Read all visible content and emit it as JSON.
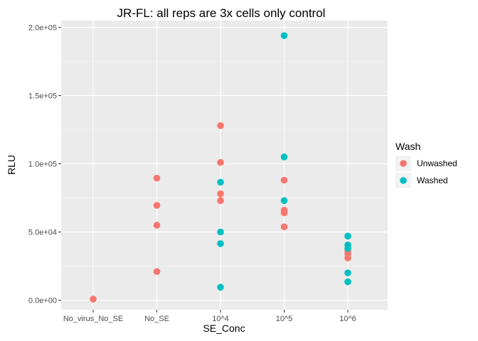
{
  "chart_data": {
    "type": "scatter",
    "title": "JR-FL: all reps are 3x cells only control",
    "xlabel": "SE_Conc",
    "ylabel": "RLU",
    "categories": [
      "No_virus_No_SE",
      "No_SE",
      "10^4",
      "10^5",
      "10^6"
    ],
    "y_ticks": [
      {
        "value": 0,
        "label": "0.0e+00"
      },
      {
        "value": 50000,
        "label": "5.0e+04"
      },
      {
        "value": 100000,
        "label": "1.0e+05"
      },
      {
        "value": 150000,
        "label": "1.5e+05"
      },
      {
        "value": 200000,
        "label": "2.0e+05"
      }
    ],
    "ylim": [
      -7000,
      205000
    ],
    "grid": true,
    "legend": {
      "title": "Wash",
      "position": "right"
    },
    "series": [
      {
        "name": "Unwashed",
        "color": "#F8766D",
        "points": [
          {
            "x": "No_virus_No_SE",
            "y": 800
          },
          {
            "x": "No_SE",
            "y": 89500
          },
          {
            "x": "No_SE",
            "y": 69500
          },
          {
            "x": "No_SE",
            "y": 55000
          },
          {
            "x": "No_SE",
            "y": 21000
          },
          {
            "x": "10^4",
            "y": 128000
          },
          {
            "x": "10^4",
            "y": 101000
          },
          {
            "x": "10^4",
            "y": 78000
          },
          {
            "x": "10^4",
            "y": 73000
          },
          {
            "x": "10^5",
            "y": 88000
          },
          {
            "x": "10^5",
            "y": 66000
          },
          {
            "x": "10^5",
            "y": 64000
          },
          {
            "x": "10^5",
            "y": 53800
          },
          {
            "x": "10^6",
            "y": 36500
          },
          {
            "x": "10^6",
            "y": 34000
          },
          {
            "x": "10^6",
            "y": 31000
          }
        ]
      },
      {
        "name": "Washed",
        "color": "#00BFC4",
        "points": [
          {
            "x": "10^4",
            "y": 86500
          },
          {
            "x": "10^4",
            "y": 50000
          },
          {
            "x": "10^4",
            "y": 41500
          },
          {
            "x": "10^4",
            "y": 9500
          },
          {
            "x": "10^5",
            "y": 194000
          },
          {
            "x": "10^5",
            "y": 105000
          },
          {
            "x": "10^5",
            "y": 73000
          },
          {
            "x": "10^6",
            "y": 47000
          },
          {
            "x": "10^6",
            "y": 40500
          },
          {
            "x": "10^6",
            "y": 38000
          },
          {
            "x": "10^6",
            "y": 20000
          },
          {
            "x": "10^6",
            "y": 13500
          }
        ]
      }
    ]
  }
}
